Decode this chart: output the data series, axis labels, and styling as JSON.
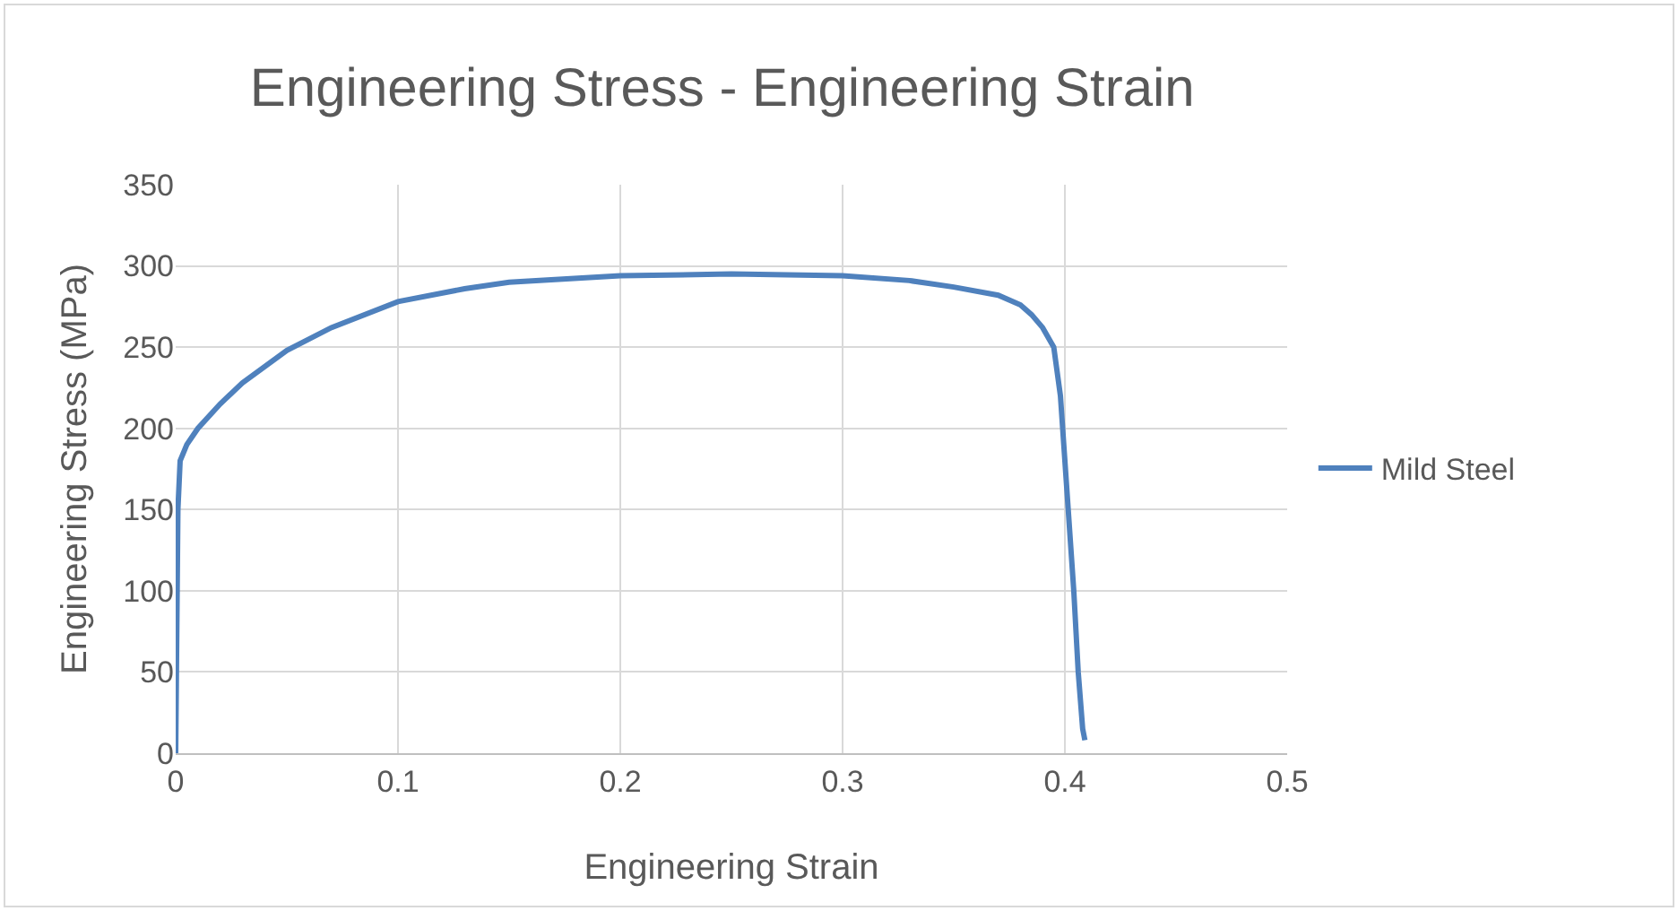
{
  "chart_data": {
    "type": "line",
    "title": "Engineering Stress - Engineering Strain",
    "xlabel": "Engineering Strain",
    "ylabel": "Engineering Stress (MPa)",
    "series": [
      {
        "name": "Mild Steel",
        "color": "#4f81bd",
        "x": [
          0,
          0.001,
          0.002,
          0.005,
          0.01,
          0.02,
          0.03,
          0.05,
          0.07,
          0.1,
          0.13,
          0.15,
          0.2,
          0.25,
          0.3,
          0.33,
          0.35,
          0.37,
          0.38,
          0.385,
          0.39,
          0.395,
          0.398,
          0.401,
          0.404,
          0.406,
          0.408,
          0.409
        ],
        "values": [
          0,
          150,
          180,
          190,
          200,
          215,
          228,
          248,
          262,
          278,
          286,
          290,
          294,
          295,
          294,
          291,
          287,
          282,
          276,
          270,
          262,
          250,
          220,
          160,
          100,
          50,
          15,
          8
        ]
      }
    ],
    "xlim": [
      0,
      0.5
    ],
    "xticks": [
      0,
      0.1,
      0.2,
      0.3,
      0.4,
      0.5
    ],
    "ylim": [
      0,
      350
    ],
    "yticks": [
      0,
      50,
      100,
      150,
      200,
      250,
      300,
      350
    ],
    "grid": true,
    "legend": "right",
    "marker": "none",
    "line_style": "solid"
  }
}
